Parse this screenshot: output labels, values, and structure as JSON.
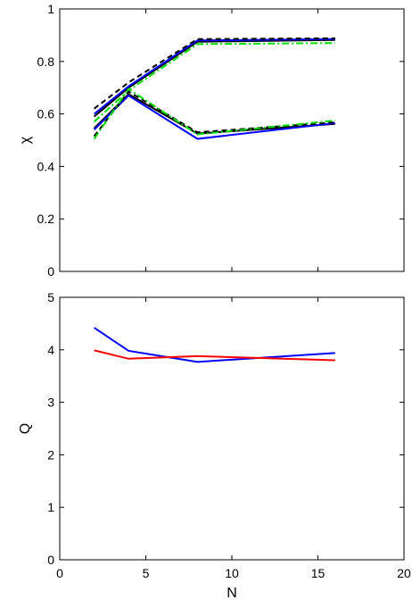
{
  "chart_data": [
    {
      "type": "line",
      "xlim": [
        0,
        20
      ],
      "ylim": [
        0,
        1
      ],
      "xticks": [],
      "yticks": [
        "0",
        "0.2",
        "0.4",
        "0.6",
        "0.8",
        "1"
      ],
      "ylabel": "χ",
      "xlabel": "",
      "grid": false,
      "series": [
        {
          "color": "#000000",
          "dash": "solid",
          "x": [
            2,
            4,
            8,
            16
          ],
          "y": [
            0.59,
            0.7,
            0.875,
            0.882
          ]
        },
        {
          "color": "#0000ff",
          "dash": "solid",
          "x": [
            2,
            4,
            8,
            16
          ],
          "y": [
            0.6,
            0.705,
            0.88,
            0.885
          ]
        },
        {
          "color": "#000000",
          "dash": "dashed",
          "x": [
            2,
            4,
            8,
            16
          ],
          "y": [
            0.62,
            0.72,
            0.885,
            0.888
          ]
        },
        {
          "color": "#00dd00",
          "dash": "dashdot",
          "x": [
            2,
            4,
            8,
            16
          ],
          "y": [
            0.57,
            0.69,
            0.866,
            0.87
          ]
        },
        {
          "color": "#000000",
          "dash": "solid",
          "x": [
            2,
            4,
            8,
            16
          ],
          "y": [
            0.545,
            0.675,
            0.525,
            0.562
          ]
        },
        {
          "color": "#0000ff",
          "dash": "solid",
          "x": [
            2,
            4,
            8,
            16
          ],
          "y": [
            0.54,
            0.67,
            0.505,
            0.565
          ]
        },
        {
          "color": "#000000",
          "dash": "dashed",
          "x": [
            2,
            4,
            8,
            16
          ],
          "y": [
            0.515,
            0.685,
            0.53,
            0.568
          ]
        },
        {
          "color": "#00dd00",
          "dash": "dashdot",
          "x": [
            2,
            4,
            8,
            16
          ],
          "y": [
            0.505,
            0.695,
            0.522,
            0.575
          ]
        }
      ]
    },
    {
      "type": "line",
      "xlim": [
        0,
        20
      ],
      "ylim": [
        0,
        5
      ],
      "xticks": [
        "0",
        "5",
        "10",
        "15",
        "20"
      ],
      "yticks": [
        "0",
        "1",
        "2",
        "3",
        "4",
        "5"
      ],
      "ylabel": "Q",
      "xlabel": "N",
      "grid": false,
      "series": [
        {
          "color": "#0000ff",
          "dash": "solid",
          "x": [
            2,
            4,
            8,
            16
          ],
          "y": [
            4.42,
            3.98,
            3.77,
            3.94
          ]
        },
        {
          "color": "#ff0000",
          "dash": "solid",
          "x": [
            2,
            4,
            8,
            16
          ],
          "y": [
            3.99,
            3.83,
            3.88,
            3.8
          ]
        }
      ]
    }
  ]
}
